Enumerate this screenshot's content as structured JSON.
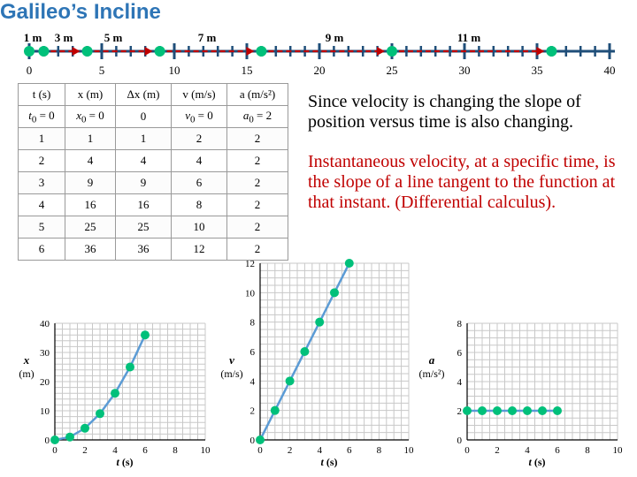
{
  "title": "Galileo’s Incline",
  "ruler": {
    "distance_labels": [
      "1 m",
      "3 m",
      "5 m",
      "7 m",
      "9 m",
      "11 m"
    ],
    "scale_labels": [
      "0",
      "5",
      "10",
      "15",
      "20",
      "25",
      "30",
      "35",
      "40"
    ],
    "dot_positions": [
      0,
      1,
      4,
      9,
      16,
      25,
      36
    ],
    "scale_max": 40,
    "colors": {
      "line": "#1f4e79",
      "dot": "#00c07a",
      "arrow": "#c00000"
    }
  },
  "table": {
    "headers": [
      "t (s)",
      "x (m)",
      "Δx (m)",
      "v (m/s)",
      "a (m/s²)"
    ],
    "first_row": [
      {
        "sym": "t",
        "sub": "0",
        "rest": " = 0"
      },
      {
        "sym": "x",
        "sub": "0",
        "rest": " = 0"
      },
      {
        "sym": "",
        "sub": "",
        "rest": "0"
      },
      {
        "sym": "v",
        "sub": "0",
        "rest": " = 0"
      },
      {
        "sym": "a",
        "sub": "0",
        "rest": " = 2"
      }
    ],
    "rows": [
      [
        "1",
        "1",
        "1",
        "2",
        "2"
      ],
      [
        "2",
        "4",
        "4",
        "4",
        "2"
      ],
      [
        "3",
        "9",
        "9",
        "6",
        "2"
      ],
      [
        "4",
        "16",
        "16",
        "8",
        "2"
      ],
      [
        "5",
        "25",
        "25",
        "10",
        "2"
      ],
      [
        "6",
        "36",
        "36",
        "12",
        "2"
      ]
    ]
  },
  "notes": {
    "velocity_slope": "Since velocity is changing the slope of position versus time is also changing.",
    "instantaneous": "Instantaneous velocity, at a specific time, is the slope of a line tangent to the function at that instant. (Differential calculus)."
  },
  "chart_data": [
    {
      "type": "line",
      "xlabel": "t (s)",
      "ylabel": "x (m)",
      "xlim": [
        0,
        10
      ],
      "ylim": [
        0,
        40
      ],
      "xticks": [
        "0",
        "2",
        "4",
        "6",
        "8",
        "10"
      ],
      "yticks": [
        "0",
        "10",
        "20",
        "30",
        "40"
      ],
      "x": [
        0,
        1,
        2,
        3,
        4,
        5,
        6
      ],
      "y": [
        0,
        1,
        4,
        9,
        16,
        25,
        36
      ],
      "grid": true,
      "colors": {
        "line": "#5b9bd5",
        "point": "#00c07a"
      }
    },
    {
      "type": "line",
      "xlabel": "t (s)",
      "ylabel": "v (m/s)",
      "xlim": [
        0,
        10
      ],
      "ylim": [
        0,
        12
      ],
      "xticks": [
        "0",
        "2",
        "4",
        "6",
        "8",
        "10"
      ],
      "yticks": [
        "0",
        "2",
        "4",
        "6",
        "8",
        "10",
        "12"
      ],
      "x": [
        0,
        1,
        2,
        3,
        4,
        5,
        6
      ],
      "y": [
        0,
        2,
        4,
        6,
        8,
        10,
        12
      ],
      "grid": true,
      "colors": {
        "line": "#5b9bd5",
        "point": "#00c07a"
      }
    },
    {
      "type": "line",
      "xlabel": "t (s)",
      "ylabel": "a (m/s²)",
      "xlim": [
        0,
        10
      ],
      "ylim": [
        0,
        8
      ],
      "xticks": [
        "0",
        "2",
        "4",
        "6",
        "8",
        "10"
      ],
      "yticks": [
        "0",
        "2",
        "4",
        "6",
        "8"
      ],
      "x": [
        0,
        1,
        2,
        3,
        4,
        5,
        6
      ],
      "y": [
        2,
        2,
        2,
        2,
        2,
        2,
        2
      ],
      "grid": true,
      "colors": {
        "line": "#5b9bd5",
        "point": "#00c07a"
      }
    }
  ]
}
